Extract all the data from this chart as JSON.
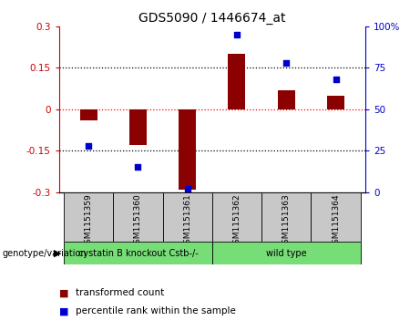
{
  "title": "GDS5090 / 1446674_at",
  "samples": [
    "GSM1151359",
    "GSM1151360",
    "GSM1151361",
    "GSM1151362",
    "GSM1151363",
    "GSM1151364"
  ],
  "transformed_count": [
    -0.04,
    -0.13,
    -0.29,
    0.2,
    0.07,
    0.05
  ],
  "percentile_rank": [
    28,
    15,
    2,
    95,
    78,
    68
  ],
  "groups": [
    {
      "label": "cystatin B knockout Cstb-/-",
      "samples": [
        0,
        1,
        2
      ],
      "color": "#77dd77"
    },
    {
      "label": "wild type",
      "samples": [
        3,
        4,
        5
      ],
      "color": "#77dd77"
    }
  ],
  "ylim_left": [
    -0.3,
    0.3
  ],
  "ylim_right": [
    0,
    100
  ],
  "yticks_left": [
    -0.3,
    -0.15,
    0,
    0.15,
    0.3
  ],
  "yticks_right": [
    0,
    25,
    50,
    75,
    100
  ],
  "ytick_labels_left": [
    "-0.3",
    "-0.15",
    "0",
    "0.15",
    "0.3"
  ],
  "ytick_labels_right": [
    "0",
    "25",
    "50",
    "75",
    "100%"
  ],
  "bar_color": "#8B0000",
  "dot_color": "#0000CD",
  "bar_width": 0.35,
  "genotype_label": "genotype/variation",
  "legend_items": [
    {
      "color": "#8B0000",
      "label": "transformed count"
    },
    {
      "color": "#0000CD",
      "label": "percentile rank within the sample"
    }
  ],
  "background_color": "#ffffff",
  "plot_bg_color": "#ffffff",
  "left_axis_color": "#cc0000",
  "right_axis_color": "#0000cc",
  "group_bg_color": "#c8c8c8"
}
